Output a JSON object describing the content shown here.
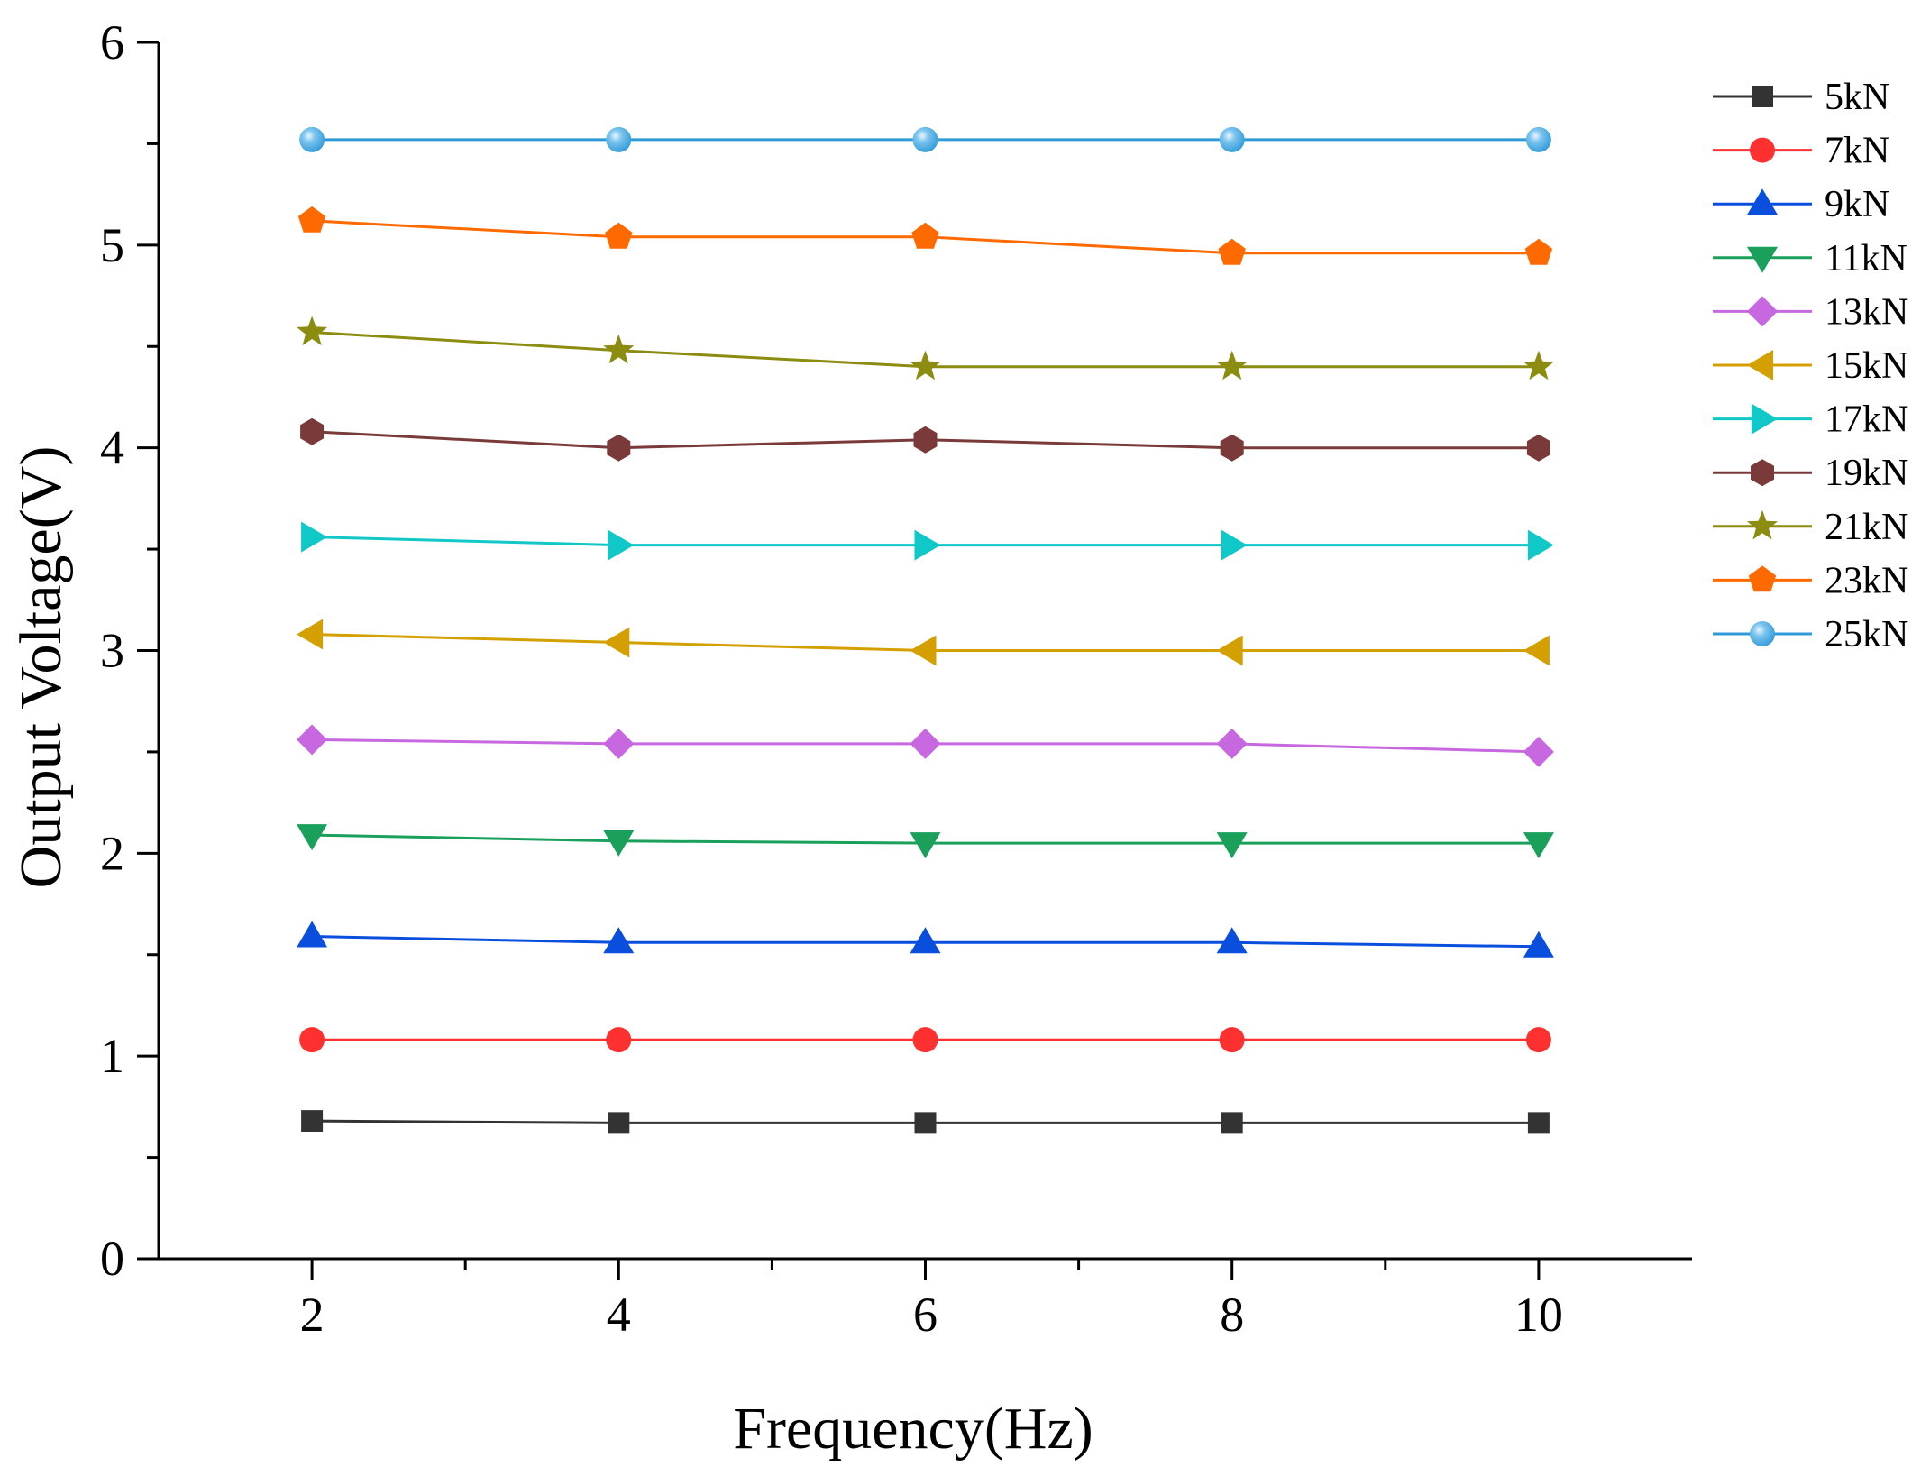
{
  "chart_data": {
    "type": "line",
    "title": "",
    "xlabel": "Frequency(Hz)",
    "ylabel": "Output Voltage(V)",
    "xlim": [
      1,
      11
    ],
    "ylim": [
      0,
      6
    ],
    "x": [
      2,
      4,
      6,
      8,
      10
    ],
    "xticks": [
      "2",
      "4",
      "6",
      "8",
      "10"
    ],
    "yticks": [
      "0",
      "1",
      "2",
      "3",
      "4",
      "5",
      "6"
    ],
    "legend_position": "top-right",
    "grid": false,
    "series": [
      {
        "name": "5kN",
        "color": "#333333",
        "marker": "square",
        "values": [
          0.68,
          0.67,
          0.67,
          0.67,
          0.67
        ]
      },
      {
        "name": "7kN",
        "color": "#ff3030",
        "marker": "circle",
        "values": [
          1.08,
          1.08,
          1.08,
          1.08,
          1.08
        ]
      },
      {
        "name": "9kN",
        "color": "#0a4ede",
        "marker": "triangle-up",
        "values": [
          1.59,
          1.56,
          1.56,
          1.56,
          1.54
        ]
      },
      {
        "name": "11kN",
        "color": "#1aa05a",
        "marker": "triangle-down",
        "values": [
          2.09,
          2.06,
          2.05,
          2.05,
          2.05
        ]
      },
      {
        "name": "13kN",
        "color": "#c868e0",
        "marker": "diamond",
        "values": [
          2.56,
          2.54,
          2.54,
          2.54,
          2.5
        ]
      },
      {
        "name": "15kN",
        "color": "#d4a000",
        "marker": "triangle-left",
        "values": [
          3.08,
          3.04,
          3.0,
          3.0,
          3.0
        ]
      },
      {
        "name": "17kN",
        "color": "#10c8c8",
        "marker": "triangle-right",
        "values": [
          3.56,
          3.52,
          3.52,
          3.52,
          3.52
        ]
      },
      {
        "name": "19kN",
        "color": "#7a3a3a",
        "marker": "hexagon",
        "values": [
          4.08,
          4.0,
          4.04,
          4.0,
          4.0
        ]
      },
      {
        "name": "21kN",
        "color": "#8c8c10",
        "marker": "star",
        "values": [
          4.57,
          4.48,
          4.4,
          4.4,
          4.4
        ]
      },
      {
        "name": "23kN",
        "color": "#ff6a00",
        "marker": "pentagon",
        "values": [
          5.12,
          5.04,
          5.04,
          4.96,
          4.96
        ]
      },
      {
        "name": "25kN",
        "color": "#2f9ad8",
        "marker": "sphere",
        "values": [
          5.52,
          5.52,
          5.52,
          5.52,
          5.52
        ]
      }
    ]
  }
}
